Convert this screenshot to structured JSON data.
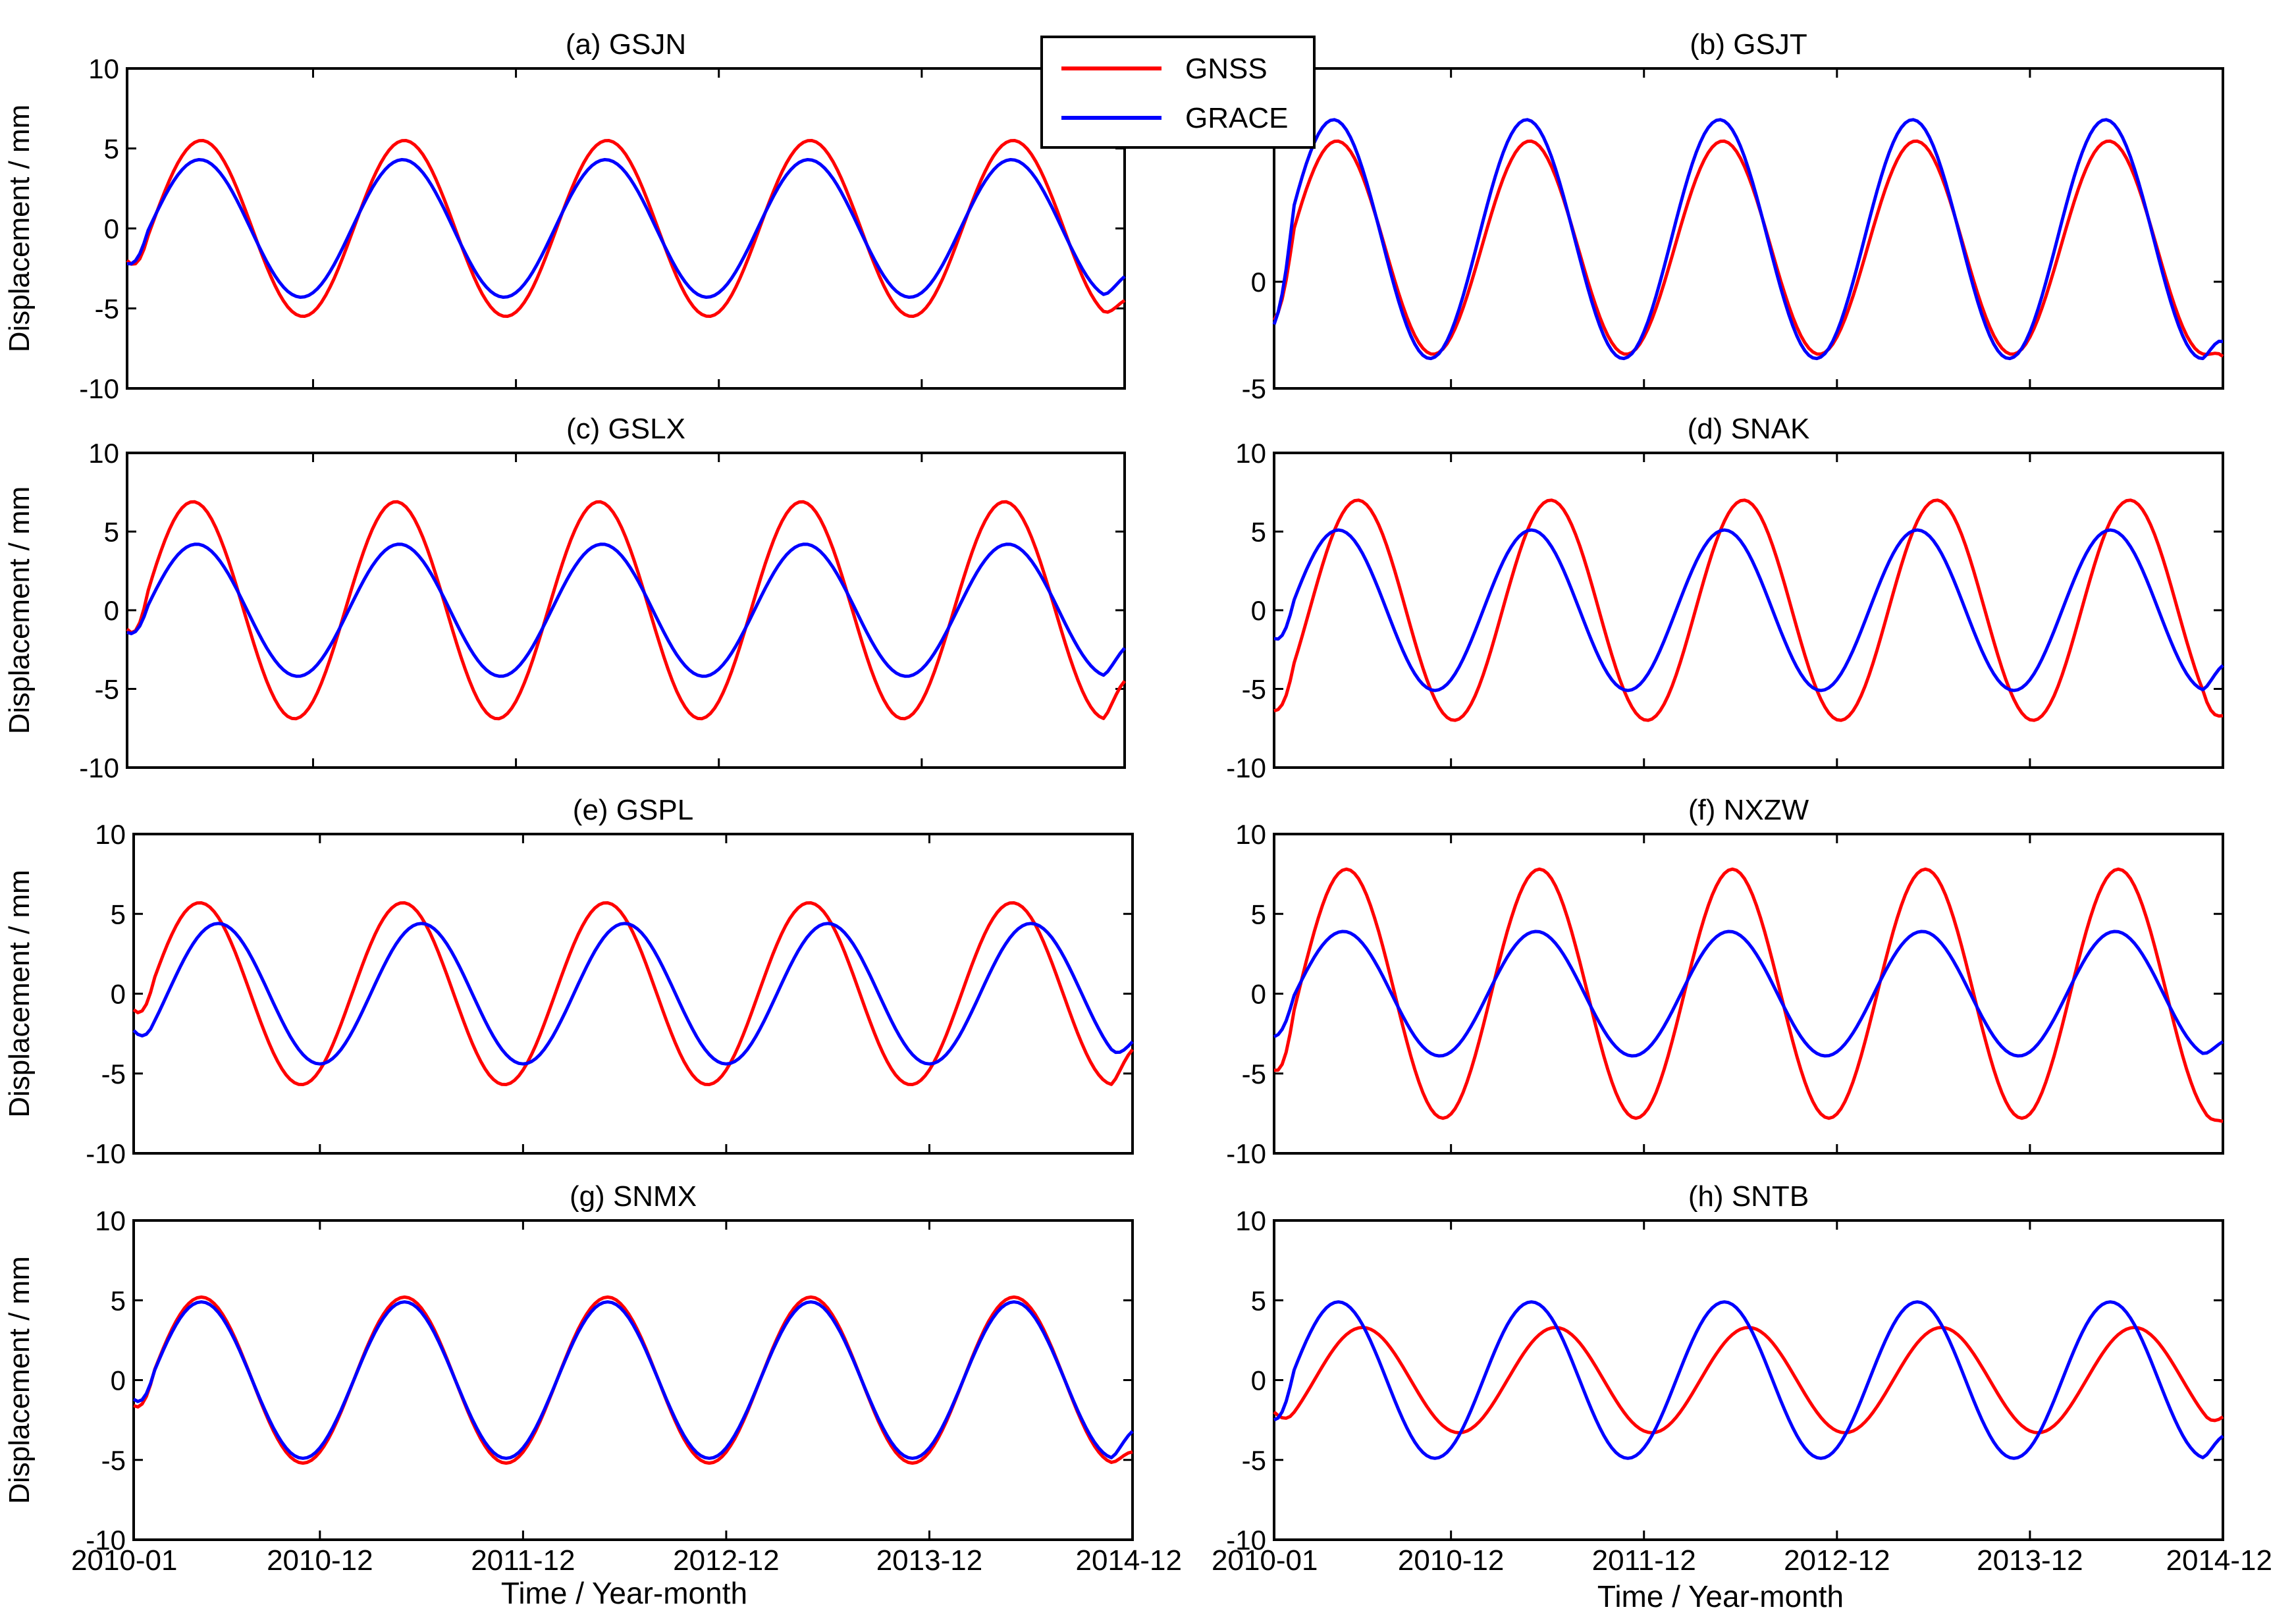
{
  "figure": {
    "xlabel": "Time / Year-month",
    "ylabel": "Displacement / mm",
    "legend": {
      "placement": "top-center",
      "entries": [
        {
          "name": "GNSS",
          "color": "#ff0000"
        },
        {
          "name": "GRACE",
          "color": "#0000ff"
        }
      ]
    },
    "x_ticks": [
      {
        "label": "2010-01",
        "t": 0
      },
      {
        "label": "2010-12",
        "t": 11
      },
      {
        "label": "2011-12",
        "t": 23
      },
      {
        "label": "2012-12",
        "t": 35
      },
      {
        "label": "2013-12",
        "t": 47
      },
      {
        "label": "2014-12",
        "t": 59
      }
    ]
  },
  "chart_data": [
    {
      "type": "line",
      "title": "(a) GSJN",
      "xlabel": "",
      "ylabel": "Displacement / mm",
      "xlim": [
        0,
        59
      ],
      "ylim": [
        -10,
        10
      ],
      "yticks": [
        -10,
        -5,
        0,
        5,
        10
      ],
      "series": [
        {
          "name": "GNSS",
          "color": "#ff0000",
          "amplitude": 5.5,
          "peak_month": 4.4,
          "start": -2.0,
          "end": -4.5
        },
        {
          "name": "GRACE",
          "color": "#0000ff",
          "amplitude": 4.3,
          "peak_month": 4.3,
          "start": -2.2,
          "end": -3.0
        }
      ]
    },
    {
      "type": "line",
      "title": "(b) GSJT",
      "xlabel": "",
      "ylabel": "",
      "xlim": [
        0,
        59
      ],
      "ylim": [
        -5,
        10
      ],
      "yticks": [
        -5,
        0
      ],
      "series": [
        {
          "name": "GNSS",
          "color": "#ff0000",
          "amplitude": 5.0,
          "offset": 1.6,
          "peak_month": 3.9,
          "start": -1.8,
          "end": -3.5
        },
        {
          "name": "GRACE",
          "color": "#0000ff",
          "amplitude": 5.6,
          "offset": 2.0,
          "peak_month": 3.7,
          "start": -2.0,
          "end": -2.8
        }
      ]
    },
    {
      "type": "line",
      "title": "(c) GSLX",
      "xlabel": "",
      "ylabel": "Displacement / mm",
      "xlim": [
        0,
        59
      ],
      "ylim": [
        -10,
        10
      ],
      "yticks": [
        -10,
        -5,
        0,
        5,
        10
      ],
      "series": [
        {
          "name": "GNSS",
          "color": "#ff0000",
          "amplitude": 6.9,
          "peak_month": 3.9,
          "start": -1.2,
          "end": -4.5
        },
        {
          "name": "GRACE",
          "color": "#0000ff",
          "amplitude": 4.2,
          "peak_month": 4.1,
          "start": -1.4,
          "end": -2.4
        }
      ]
    },
    {
      "type": "line",
      "title": "(d) SNAK",
      "xlabel": "",
      "ylabel": "",
      "xlim": [
        0,
        59
      ],
      "ylim": [
        -10,
        10
      ],
      "yticks": [
        -10,
        -5,
        0,
        5,
        10
      ],
      "series": [
        {
          "name": "GNSS",
          "color": "#ff0000",
          "amplitude": 7.0,
          "peak_month": 5.2,
          "start": -6.4,
          "end": -6.7
        },
        {
          "name": "GRACE",
          "color": "#0000ff",
          "amplitude": 5.1,
          "peak_month": 4.0,
          "start": -1.8,
          "end": -3.5
        }
      ]
    },
    {
      "type": "line",
      "title": "(e) GSPL",
      "xlabel": "",
      "ylabel": "Displacement / mm",
      "xlim": [
        0,
        59
      ],
      "ylim": [
        -10,
        10
      ],
      "yticks": [
        -10,
        -5,
        0,
        5,
        10
      ],
      "series": [
        {
          "name": "GNSS",
          "color": "#ff0000",
          "amplitude": 5.7,
          "peak_month": 3.9,
          "start": -1.0,
          "end": -3.5
        },
        {
          "name": "GRACE",
          "color": "#0000ff",
          "amplitude": 4.4,
          "peak_month": 5.0,
          "start": -2.3,
          "end": -3.0
        }
      ]
    },
    {
      "type": "line",
      "title": "(f) NXZW",
      "xlabel": "",
      "ylabel": "",
      "xlim": [
        0,
        59
      ],
      "ylim": [
        -10,
        10
      ],
      "yticks": [
        -10,
        -5,
        0,
        5,
        10
      ],
      "series": [
        {
          "name": "GNSS",
          "color": "#ff0000",
          "amplitude": 7.8,
          "peak_month": 4.5,
          "start": -4.8,
          "end": -8.0
        },
        {
          "name": "GRACE",
          "color": "#0000ff",
          "amplitude": 3.9,
          "peak_month": 4.3,
          "start": -2.7,
          "end": -3.0
        }
      ]
    },
    {
      "type": "line",
      "title": "(g) SNMX",
      "xlabel": "Time / Year-month",
      "ylabel": "Displacement / mm",
      "xlim": [
        0,
        59
      ],
      "ylim": [
        -10,
        10
      ],
      "yticks": [
        -10,
        -5,
        0,
        5,
        10
      ],
      "series": [
        {
          "name": "GNSS",
          "color": "#ff0000",
          "amplitude": 5.2,
          "peak_month": 4.0,
          "start": -1.6,
          "end": -4.5
        },
        {
          "name": "GRACE",
          "color": "#0000ff",
          "amplitude": 4.9,
          "peak_month": 4.0,
          "start": -1.2,
          "end": -3.2
        }
      ]
    },
    {
      "type": "line",
      "title": "(h) SNTB",
      "xlabel": "Time / Year-month",
      "ylabel": "",
      "xlim": [
        0,
        59
      ],
      "ylim": [
        -10,
        10
      ],
      "yticks": [
        -10,
        -5,
        0,
        5,
        10
      ],
      "series": [
        {
          "name": "GNSS",
          "color": "#ff0000",
          "amplitude": 3.3,
          "peak_month": 5.5,
          "start": -2.0,
          "end": -2.3
        },
        {
          "name": "GRACE",
          "color": "#0000ff",
          "amplitude": 4.9,
          "peak_month": 4.0,
          "start": -2.5,
          "end": -3.5
        }
      ]
    }
  ]
}
